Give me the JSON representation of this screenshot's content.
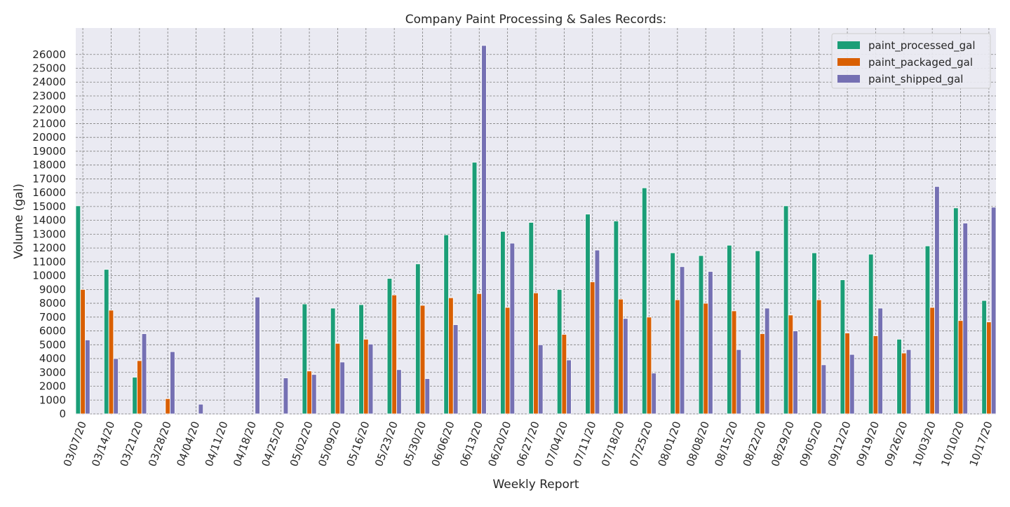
{
  "chart_data": {
    "type": "bar",
    "title": "Company Paint Processing & Sales Records:",
    "xlabel": "Weekly Report",
    "ylabel": "Volume (gal)",
    "ylim": [
      0,
      27000
    ],
    "yticks": [
      0,
      1000,
      2000,
      3000,
      4000,
      5000,
      6000,
      7000,
      8000,
      9000,
      10000,
      11000,
      12000,
      13000,
      14000,
      15000,
      16000,
      17000,
      18000,
      19000,
      20000,
      21000,
      22000,
      23000,
      24000,
      25000,
      26000
    ],
    "grid": true,
    "legend_position": "top-right",
    "categories": [
      "03/07/20",
      "03/14/20",
      "03/21/20",
      "03/28/20",
      "04/04/20",
      "04/11/20",
      "04/18/20",
      "04/25/20",
      "05/02/20",
      "05/09/20",
      "05/16/20",
      "05/23/20",
      "05/30/20",
      "06/06/20",
      "06/13/20",
      "06/20/20",
      "06/27/20",
      "07/04/20",
      "07/11/20",
      "07/18/20",
      "07/25/20",
      "08/01/20",
      "08/08/20",
      "08/15/20",
      "08/22/20",
      "08/29/20",
      "09/05/20",
      "09/12/20",
      "09/19/20",
      "09/26/20",
      "10/03/20",
      "10/10/20",
      "10/17/20"
    ],
    "series": [
      {
        "name": "paint_processed_gal",
        "color": "#1b9e77",
        "values": [
          15050,
          10450,
          2650,
          0,
          0,
          0,
          0,
          0,
          7950,
          7650,
          7900,
          9800,
          10850,
          12950,
          18200,
          13200,
          13850,
          9000,
          14450,
          13950,
          16350,
          11650,
          11450,
          12200,
          11800,
          15050,
          11650,
          9700,
          11550,
          5400,
          12150,
          14900,
          8200
        ]
      },
      {
        "name": "paint_packaged_gal",
        "color": "#d95f02",
        "values": [
          9000,
          7500,
          3850,
          1100,
          0,
          0,
          0,
          0,
          3100,
          5100,
          5400,
          8600,
          7850,
          8400,
          8700,
          7700,
          8750,
          5750,
          9550,
          8300,
          7000,
          8250,
          8000,
          7450,
          5800,
          7150,
          8250,
          5850,
          5650,
          4400,
          7700,
          6750,
          6650
        ]
      },
      {
        "name": "paint_shipped_gal",
        "color": "#7570b3",
        "values": [
          5350,
          4000,
          5800,
          4500,
          700,
          0,
          8450,
          2600,
          2850,
          3750,
          5050,
          3200,
          2550,
          6450,
          26650,
          12350,
          5000,
          3900,
          11850,
          6900,
          2950,
          10650,
          10300,
          4650,
          7650,
          6000,
          3550,
          4300,
          7650,
          4650,
          16450,
          13800,
          14950
        ]
      }
    ]
  }
}
